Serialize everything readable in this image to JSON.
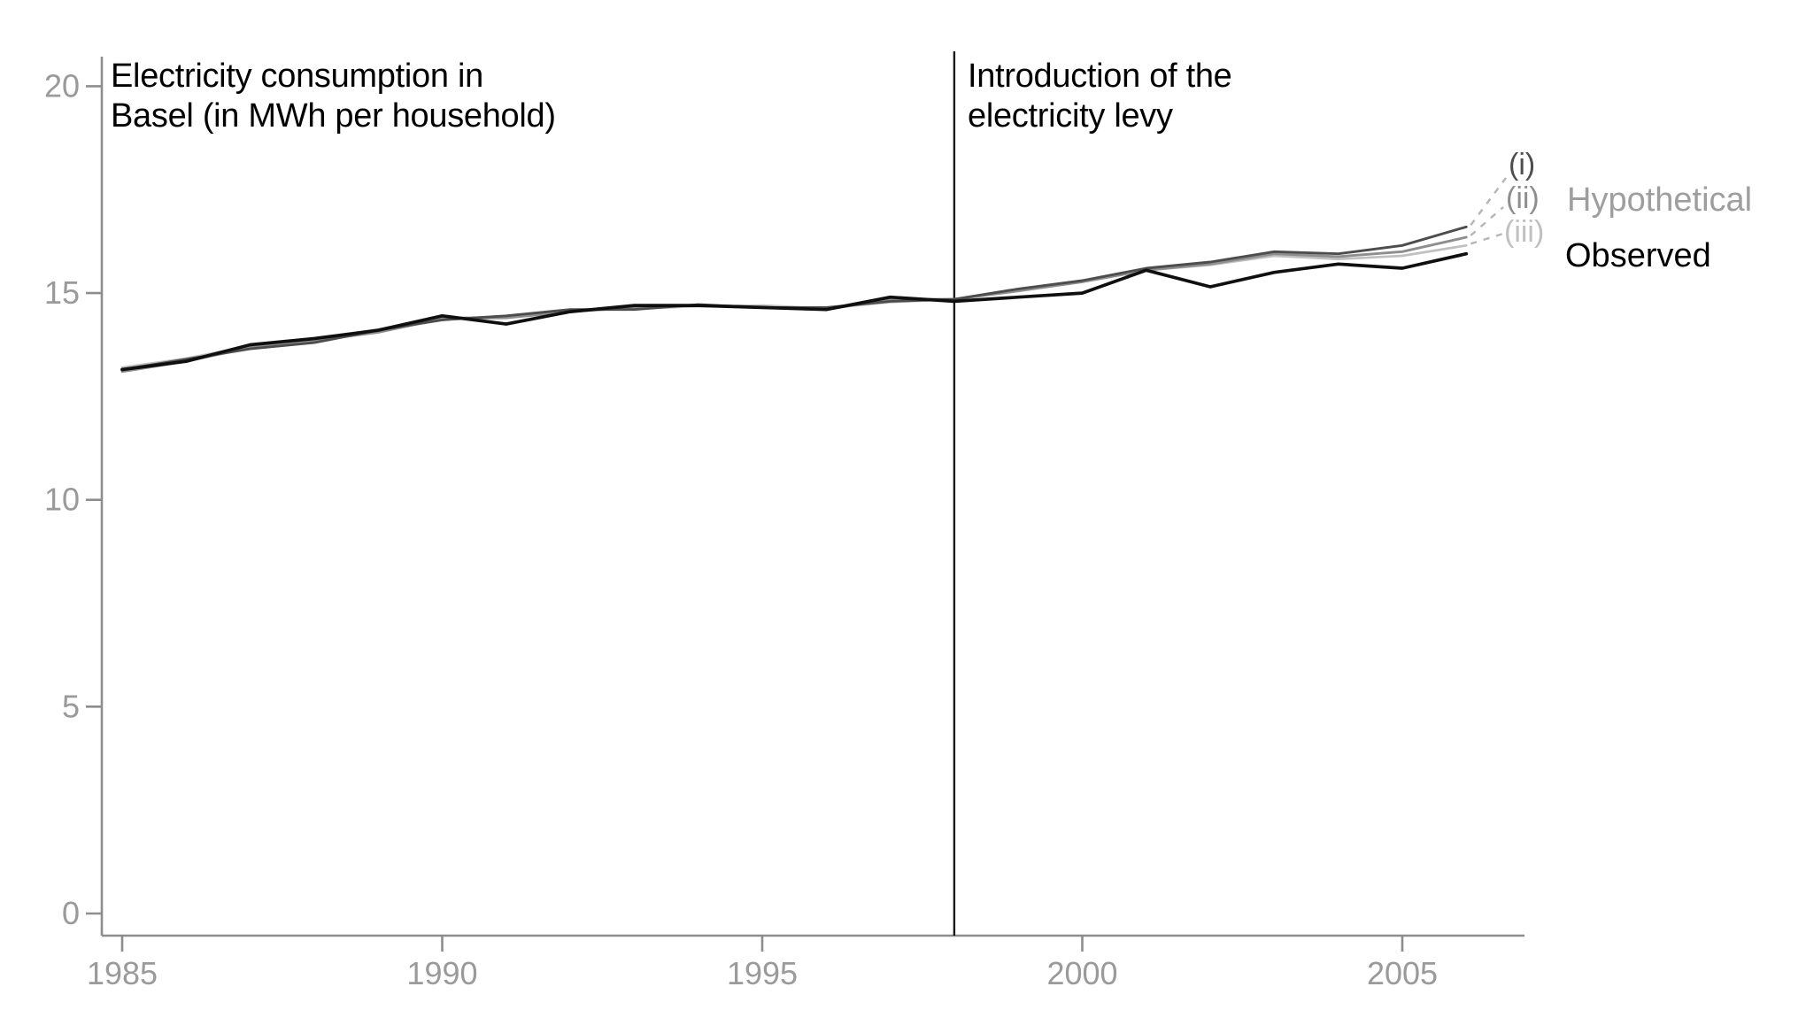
{
  "page": {
    "background": "#ffffff"
  },
  "axis": {
    "line_color": "#8d8d8d",
    "tick_label_color": "#9a9a9a",
    "levy_line_color": "#1a1a1a",
    "leader_dash_color": "#b5b5b5"
  },
  "chart_data": {
    "type": "line",
    "title": "Electricity consumption in Basel (in MWh per household)",
    "title_lines": [
      "Electricity consumption in",
      "Basel (in MWh per household)"
    ],
    "annotation_lines": [
      "Introduction of the",
      "electricity levy"
    ],
    "levy_year": 1998,
    "grid": false,
    "legend_position": "right",
    "xlim": [
      1984.7,
      2007.2
    ],
    "ylim": [
      0,
      20.8
    ],
    "x_tick_values": [
      1985,
      1990,
      1995,
      2000,
      2005
    ],
    "x_tick_labels": [
      "1985",
      "1990",
      "1995",
      "2000",
      "2005"
    ],
    "y_tick_values": [
      0,
      5,
      10,
      15,
      20
    ],
    "y_tick_labels": [
      "0",
      "5",
      "10",
      "15",
      "20"
    ],
    "x": [
      1985,
      1986,
      1987,
      1988,
      1989,
      1990,
      1991,
      1992,
      1993,
      1994,
      1995,
      1996,
      1997,
      1998,
      1999,
      2000,
      2001,
      2002,
      2003,
      2004,
      2005,
      2006
    ],
    "legend": {
      "hypothetical": "Hypothetical",
      "observed": "Observed"
    },
    "series": [
      {
        "name": "observed",
        "label": "Observed",
        "color": "#0f0f0f",
        "width": 3.7,
        "values": [
          13.15,
          13.35,
          13.75,
          13.9,
          14.1,
          14.45,
          14.25,
          14.55,
          14.7,
          14.7,
          14.65,
          14.6,
          14.9,
          14.8,
          14.9,
          15.0,
          15.55,
          15.15,
          15.5,
          15.7,
          15.6,
          15.95
        ]
      },
      {
        "name": "hypothetical-i",
        "label": "(i)",
        "color": "#4d4d4d",
        "width": 2.9,
        "values": [
          13.15,
          13.4,
          13.65,
          13.8,
          14.1,
          14.35,
          14.45,
          14.6,
          14.6,
          14.72,
          14.65,
          14.65,
          14.8,
          14.85,
          15.1,
          15.3,
          15.6,
          15.75,
          16.0,
          15.95,
          16.15,
          16.6
        ]
      },
      {
        "name": "hypothetical-ii",
        "label": "(ii)",
        "color": "#8e8e8e",
        "width": 2.9,
        "values": [
          13.1,
          13.35,
          13.68,
          13.85,
          14.05,
          14.38,
          14.4,
          14.55,
          14.65,
          14.7,
          14.65,
          14.6,
          14.85,
          14.85,
          15.05,
          15.27,
          15.55,
          15.7,
          15.95,
          15.88,
          16.0,
          16.35
        ]
      },
      {
        "name": "hypothetical-iii",
        "label": "(iii)",
        "color": "#c0c0c0",
        "width": 2.7,
        "values": [
          13.2,
          13.42,
          13.72,
          13.88,
          14.12,
          14.4,
          14.42,
          14.58,
          14.62,
          14.68,
          14.7,
          14.63,
          14.78,
          14.85,
          15.05,
          15.3,
          15.55,
          15.68,
          15.9,
          15.82,
          15.9,
          16.15
        ]
      }
    ],
    "legend_text_colors": {
      "hypothetical": "#9e9e9e",
      "observed": "#000000"
    }
  }
}
